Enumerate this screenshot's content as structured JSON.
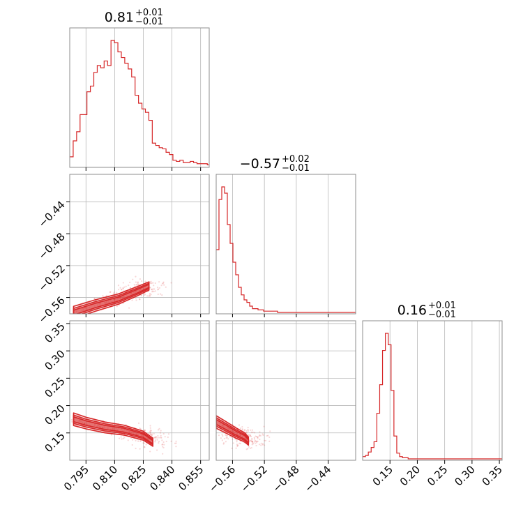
{
  "chart_data": {
    "type": "corner",
    "color": "#d62728",
    "parameters": [
      {
        "title": {
          "median": "0.81",
          "plus": "+0.01",
          "minus": "−0.01"
        }
      },
      {
        "title": {
          "median": "−0.57",
          "plus": "+0.02",
          "minus": "−0.01"
        }
      },
      {
        "title": {
          "median": "0.16",
          "plus": "+0.01",
          "minus": "−0.01"
        }
      }
    ],
    "axes": [
      {
        "range": [
          0.7865,
          0.8595
        ],
        "ticks": [
          0.795,
          0.81,
          0.825,
          0.84,
          0.855
        ],
        "tick_labels": [
          "0.795",
          "0.810",
          "0.825",
          "0.840",
          "0.855"
        ]
      },
      {
        "range": [
          -0.5805,
          -0.4055
        ],
        "ticks": [
          -0.56,
          -0.52,
          -0.48,
          -0.44
        ],
        "tick_labels": [
          "−0.56",
          "−0.52",
          "−0.48",
          "−0.44"
        ]
      },
      {
        "range": [
          0.1,
          0.355
        ],
        "ticks": [
          0.15,
          0.2,
          0.25,
          0.3,
          0.35
        ],
        "tick_labels": [
          "0.15",
          "0.20",
          "0.25",
          "0.30",
          "0.35"
        ]
      }
    ],
    "histograms": [
      {
        "param": 0,
        "bin_start": 0.7865,
        "bin_width": 0.0018,
        "counts": [
          8,
          22,
          30,
          45,
          45,
          65,
          70,
          82,
          88,
          86,
          92,
          88,
          110,
          108,
          100,
          95,
          90,
          85,
          78,
          62,
          55,
          50,
          47,
          40,
          20,
          18,
          16,
          15,
          12,
          10,
          5,
          4,
          5,
          3,
          3,
          4,
          3,
          2,
          2,
          2,
          1,
          2
        ]
      },
      {
        "param": 1,
        "bin_start": -0.5805,
        "bin_width": 0.0035,
        "counts": [
          50,
          90,
          100,
          95,
          70,
          55,
          40,
          30,
          20,
          14,
          10,
          8,
          5,
          3,
          3,
          2,
          2,
          1,
          1,
          1,
          1,
          1,
          0,
          0,
          0,
          0,
          0,
          0,
          0,
          0,
          0,
          0,
          0,
          0,
          0,
          0,
          0,
          0,
          0,
          0,
          0,
          0,
          0,
          0,
          0,
          0,
          0,
          0,
          0,
          0
        ]
      },
      {
        "param": 2,
        "bin_start": 0.1,
        "bin_width": 0.0052,
        "counts": [
          2,
          3,
          6,
          10,
          15,
          40,
          65,
          95,
          110,
          100,
          60,
          20,
          5,
          2,
          1,
          1,
          0,
          0,
          0,
          0,
          0,
          0,
          0,
          0,
          0,
          0,
          0,
          0,
          0,
          0,
          0,
          0,
          0,
          0,
          0,
          0,
          0,
          0,
          0,
          0,
          0,
          0,
          0,
          0,
          0,
          0,
          0,
          0,
          0
        ]
      }
    ],
    "contour_levels": [
      {
        "pair": [
          0,
          1
        ],
        "points": [
          [
            0.7885,
            -0.579
          ],
          [
            0.8,
            -0.57
          ],
          [
            0.812,
            -0.562
          ],
          [
            0.822,
            -0.552
          ],
          [
            0.828,
            -0.5455
          ]
        ]
      },
      {
        "pair": [
          0,
          2
        ],
        "points": [
          [
            0.7885,
            0.175
          ],
          [
            0.795,
            0.168
          ],
          [
            0.805,
            0.16
          ],
          [
            0.815,
            0.155
          ],
          [
            0.825,
            0.145
          ],
          [
            0.83,
            0.133
          ]
        ]
      },
      {
        "pair": [
          1,
          2
        ],
        "points": [
          [
            -0.5805,
            0.17
          ],
          [
            -0.568,
            0.16
          ],
          [
            -0.556,
            0.15
          ],
          [
            -0.545,
            0.142
          ],
          [
            -0.54,
            0.135
          ]
        ]
      }
    ]
  }
}
